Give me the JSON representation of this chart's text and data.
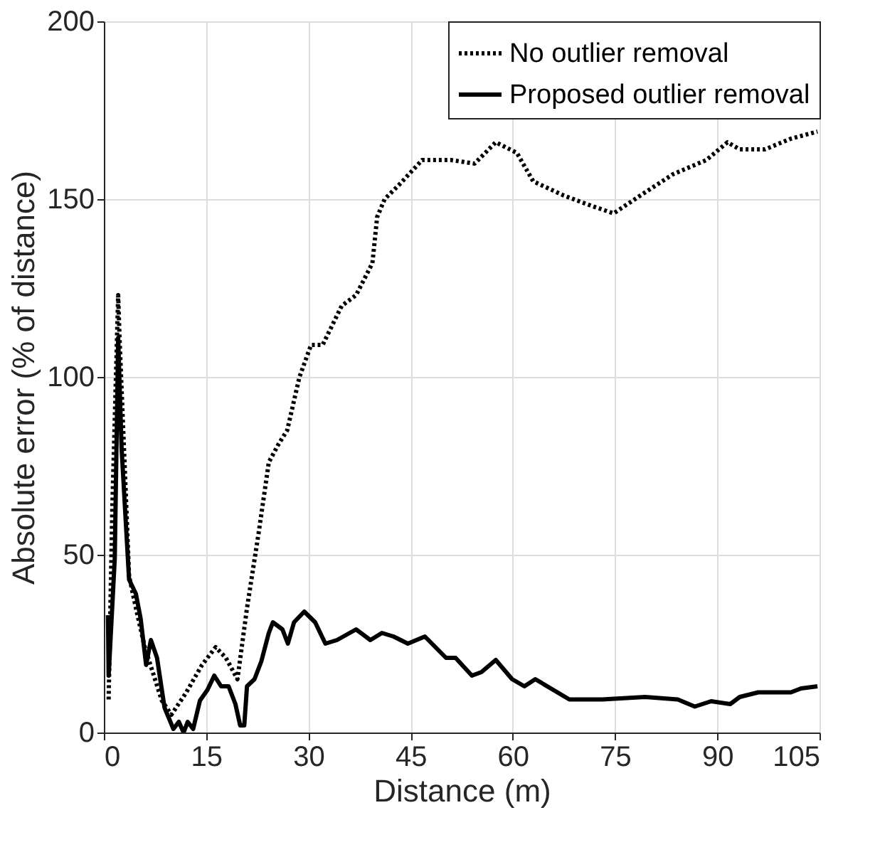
{
  "chart_data": {
    "type": "line",
    "xlabel": "Distance (m)",
    "ylabel": "Absolute error (% of distance)",
    "xlim": [
      0,
      105
    ],
    "xticks": [
      0,
      15,
      30,
      45,
      60,
      75,
      90,
      105
    ],
    "ylim": [
      0,
      200
    ],
    "yticks": [
      0,
      50,
      100,
      150,
      200
    ],
    "grid": true,
    "legend": "top right",
    "marker": "none",
    "series": [
      {
        "name": "No outlier removal",
        "color": "#000000",
        "line_style": "dotted",
        "x": [
          0.7,
          1.25,
          2.1,
          2.3,
          3.7,
          4.7,
          6,
          8.5,
          9.9,
          12,
          14.4,
          16.4,
          17.9,
          19.6,
          21,
          22.7,
          24.2,
          25.6,
          26.9,
          28.7,
          30.4,
          32.1,
          34.9,
          37,
          39.4,
          40.1,
          41.2,
          43.3,
          46.7,
          50.9,
          54.4,
          57.5,
          60.6,
          63,
          67.5,
          71.7,
          74.8,
          78.7,
          83.5,
          88.4,
          91.5,
          93.3,
          97,
          100.8,
          104.7
        ],
        "values": [
          9.3,
          64,
          123,
          111,
          44,
          35,
          24,
          9,
          5,
          11,
          19,
          24,
          21,
          15,
          35,
          56,
          76,
          81,
          85,
          100,
          109,
          109,
          120,
          123,
          132,
          145,
          150,
          154,
          161,
          161,
          160,
          166,
          163,
          155,
          151,
          148,
          146,
          151,
          157,
          161,
          166,
          164,
          164,
          167,
          169
        ]
      },
      {
        "name": "Proposed outlier removal",
        "color": "#000000",
        "line_style": "solid",
        "x": [
          0.6,
          0.7,
          1.6,
          2.1,
          2.6,
          3.7,
          4.7,
          5.4,
          6.2,
          6.9,
          7.8,
          8.9,
          10.2,
          11,
          11.7,
          12.3,
          13.1,
          14.1,
          15.2,
          16.2,
          17.2,
          18.3,
          19.3,
          20,
          20.6,
          21,
          22.1,
          23.1,
          24.2,
          24.8,
          26.2,
          27,
          27.9,
          29.4,
          31,
          31.5,
          32.5,
          34.2,
          37,
          39.1,
          40.8,
          42.5,
          44.6,
          47.1,
          50.2,
          51.6,
          54,
          55.4,
          57.5,
          59.9,
          61.7,
          63.3,
          68.3,
          73.1,
          79.4,
          84.2,
          86.7,
          89.1,
          91.9,
          93.3,
          96,
          100.8,
          102.3,
          104.7
        ],
        "values": [
          33,
          16,
          49,
          111,
          80,
          43,
          39,
          32,
          19,
          26,
          21,
          7,
          1,
          3,
          0,
          3,
          1,
          9,
          12,
          16,
          13,
          13,
          8,
          2,
          2,
          13,
          15,
          20,
          28,
          31,
          29,
          25,
          31,
          34,
          31,
          29,
          25,
          26,
          29,
          26,
          28,
          27,
          25,
          27,
          21,
          21,
          16,
          17,
          20.4,
          15,
          13,
          15,
          9.3,
          9.3,
          10,
          9.3,
          7.3,
          8.8,
          8,
          10,
          11.3,
          11.3,
          12.4,
          13
        ]
      }
    ]
  }
}
